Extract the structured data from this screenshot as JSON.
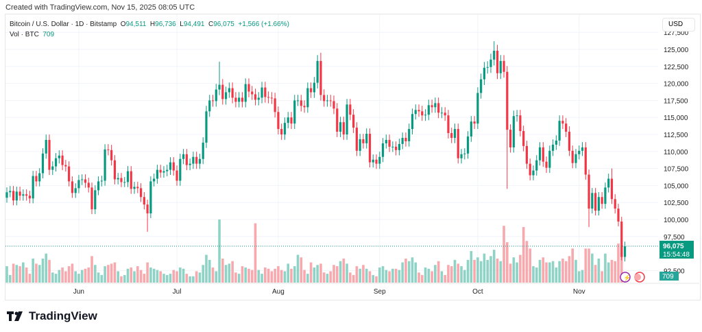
{
  "header": {
    "created": "Created with TradingView.com, Nov 15, 2025 08:05 UTC"
  },
  "legend": {
    "symbol": "Bitcoin / U.S. Dollar · 1D · Bitstamp",
    "o_label": "O",
    "o": "94,511",
    "h_label": "H",
    "h": "96,736",
    "l_label": "L",
    "l": "94,491",
    "c_label": "C",
    "c": "96,075",
    "change": "+1,566 (+1.66%)",
    "vol_label": "Vol · BTC",
    "vol": "709"
  },
  "currency": "USD",
  "last_price": {
    "price": "96,075",
    "countdown": "15:54:48",
    "volume": "709"
  },
  "brand": "TradingView",
  "colors": {
    "up": "#089981",
    "down": "#f23645",
    "up_vol": "#8fd3c6",
    "down_vol": "#f7a9ae"
  },
  "chart_data": {
    "type": "candlestick",
    "title": "Bitcoin / U.S. Dollar · 1D · Bitstamp",
    "start_date": "2025-05-10",
    "interval": "1D",
    "ylim": [
      91000,
      127500
    ],
    "y_ticks": [
      "92,500",
      "97,500",
      "100,000",
      "102,500",
      "105,000",
      "107,500",
      "110,000",
      "112,500",
      "115,000",
      "117,500",
      "120,000",
      "122,500",
      "125,000",
      "127,500"
    ],
    "y_tick_values": [
      92500,
      97500,
      100000,
      102500,
      105000,
      107500,
      110000,
      112500,
      115000,
      117500,
      120000,
      122500,
      125000,
      127500
    ],
    "x_ticks": [
      {
        "label": "Jun",
        "day_index": 22
      },
      {
        "label": "Jul",
        "day_index": 52
      },
      {
        "label": "Aug",
        "day_index": 83
      },
      {
        "label": "Sep",
        "day_index": 114
      },
      {
        "label": "Oct",
        "day_index": 144
      },
      {
        "label": "Nov",
        "day_index": 175
      }
    ],
    "close_k": [
      104.0,
      104.2,
      102.8,
      104.1,
      103.5,
      103.7,
      103.5,
      103.1,
      106.4,
      105.6,
      106.8,
      109.7,
      111.7,
      107.3,
      107.8,
      109.0,
      109.4,
      108.0,
      107.8,
      105.6,
      103.9,
      104.6,
      105.8,
      105.9,
      105.4,
      104.7,
      101.5,
      104.3,
      105.6,
      105.7,
      110.3,
      110.2,
      108.7,
      105.9,
      106.1,
      105.5,
      105.5,
      107.1,
      104.5,
      104.8,
      104.6,
      103.3,
      102.2,
      100.9,
      105.6,
      106.0,
      107.3,
      106.9,
      107.1,
      107.3,
      108.4,
      107.2,
      105.7,
      108.9,
      109.6,
      108.0,
      108.2,
      109.2,
      108.2,
      108.9,
      111.3,
      115.9,
      117.5,
      117.4,
      119.1,
      119.8,
      117.7,
      118.7,
      119.3,
      117.9,
      117.3,
      117.9,
      117.3,
      119.9,
      118.8,
      118.4,
      117.6,
      117.9,
      119.4,
      118.0,
      117.9,
      117.8,
      115.8,
      113.3,
      112.5,
      114.2,
      115.0,
      114.1,
      117.5,
      117.5,
      116.7,
      116.5,
      119.3,
      118.7,
      120.1,
      123.3,
      118.3,
      117.4,
      117.5,
      117.4,
      116.3,
      112.9,
      114.3,
      112.5,
      116.9,
      115.4,
      113.5,
      110.1,
      111.8,
      111.2,
      112.6,
      108.4,
      108.8,
      108.2,
      109.2,
      111.2,
      111.7,
      110.7,
      110.7,
      110.2,
      111.1,
      112.0,
      111.5,
      113.3,
      115.5,
      116.1,
      115.9,
      115.3,
      115.4,
      116.8,
      116.5,
      117.1,
      115.7,
      115.7,
      115.3,
      112.7,
      112.0,
      113.3,
      109.0,
      109.6,
      109.7,
      112.2,
      114.4,
      114.1,
      118.6,
      120.6,
      122.3,
      122.4,
      123.5,
      124.8,
      121.5,
      123.3,
      121.7,
      113.2,
      110.6,
      115.2,
      115.3,
      113.0,
      110.8,
      108.2,
      106.5,
      107.2,
      108.7,
      110.6,
      108.5,
      107.6,
      110.1,
      111.0,
      111.6,
      114.5,
      114.1,
      112.9,
      110.1,
      108.3,
      109.6,
      110.1,
      110.6,
      106.6,
      101.6,
      103.9,
      101.3,
      103.3,
      102.3,
      104.7,
      106.0,
      103.0,
      101.6,
      99.7,
      94.5,
      96.075
    ],
    "first_open_k": 103.2,
    "typical_wick_pct": 0.7,
    "notable_extremes": [
      {
        "day_index": 43,
        "low_k": 98.2
      },
      {
        "day_index": 65,
        "high_k": 123.2
      },
      {
        "day_index": 96,
        "high_k": 124.5
      },
      {
        "day_index": 149,
        "high_k": 126.2
      },
      {
        "day_index": 153,
        "low_k": 104.5
      },
      {
        "day_index": 178,
        "low_k": 98.9
      },
      {
        "day_index": 185,
        "high_k": 107.5
      },
      {
        "day_index": 188,
        "low_k": 94.0
      }
    ],
    "volume_btc": [
      1300,
      600,
      1500,
      1400,
      1300,
      1600,
      1200,
      700,
      1900,
      1500,
      1400,
      1900,
      2300,
      1800,
      800,
      700,
      1000,
      1200,
      900,
      1300,
      1500,
      900,
      700,
      1000,
      1100,
      1200,
      2100,
      1400,
      800,
      600,
      1300,
      1400,
      1500,
      1600,
      900,
      500,
      600,
      1100,
      1200,
      900,
      1300,
      1000,
      700,
      1600,
      1200,
      1100,
      1000,
      900,
      700,
      600,
      700,
      1000,
      900,
      1200,
      1100,
      700,
      500,
      500,
      900,
      800,
      1400,
      2200,
      1800,
      1200,
      900,
      5000,
      1900,
      1400,
      1500,
      1700,
      800,
      700,
      1300,
      1200,
      1100,
      1000,
      4700,
      1000,
      700,
      1200,
      1100,
      900,
      1100,
      1300,
      1000,
      900,
      1500,
      1100,
      1300,
      2200,
      2000,
      1000,
      700,
      1600,
      1200,
      1400,
      1500,
      800,
      700,
      900,
      1400,
      1300,
      1700,
      1900,
      1500,
      800,
      600,
      1300,
      1100,
      1400,
      1100,
      900,
      600,
      500,
      1200,
      1300,
      1000,
      900,
      1100,
      1100,
      1000,
      1600,
      1900,
      1700,
      2000,
      1600,
      800,
      600,
      1200,
      1100,
      900,
      1400,
      1700,
      900,
      600,
      1400,
      1300,
      1800,
      1500,
      1300,
      1000,
      1800,
      2500,
      1800,
      2000,
      1700,
      2300,
      1800,
      2100,
      2600,
      1900,
      1700,
      4500,
      3200,
      1500,
      2000,
      1600,
      2200,
      4400,
      3300,
      2700,
      1300,
      1200,
      1800,
      2000,
      1600,
      1600,
      1700,
      1200,
      1700,
      1900,
      1700,
      2100,
      2700,
      1800,
      900,
      1000,
      2700,
      2700,
      2300,
      1400,
      1900,
      900,
      2300,
      1600,
      1800,
      1700,
      3100,
      2900,
      709
    ]
  }
}
